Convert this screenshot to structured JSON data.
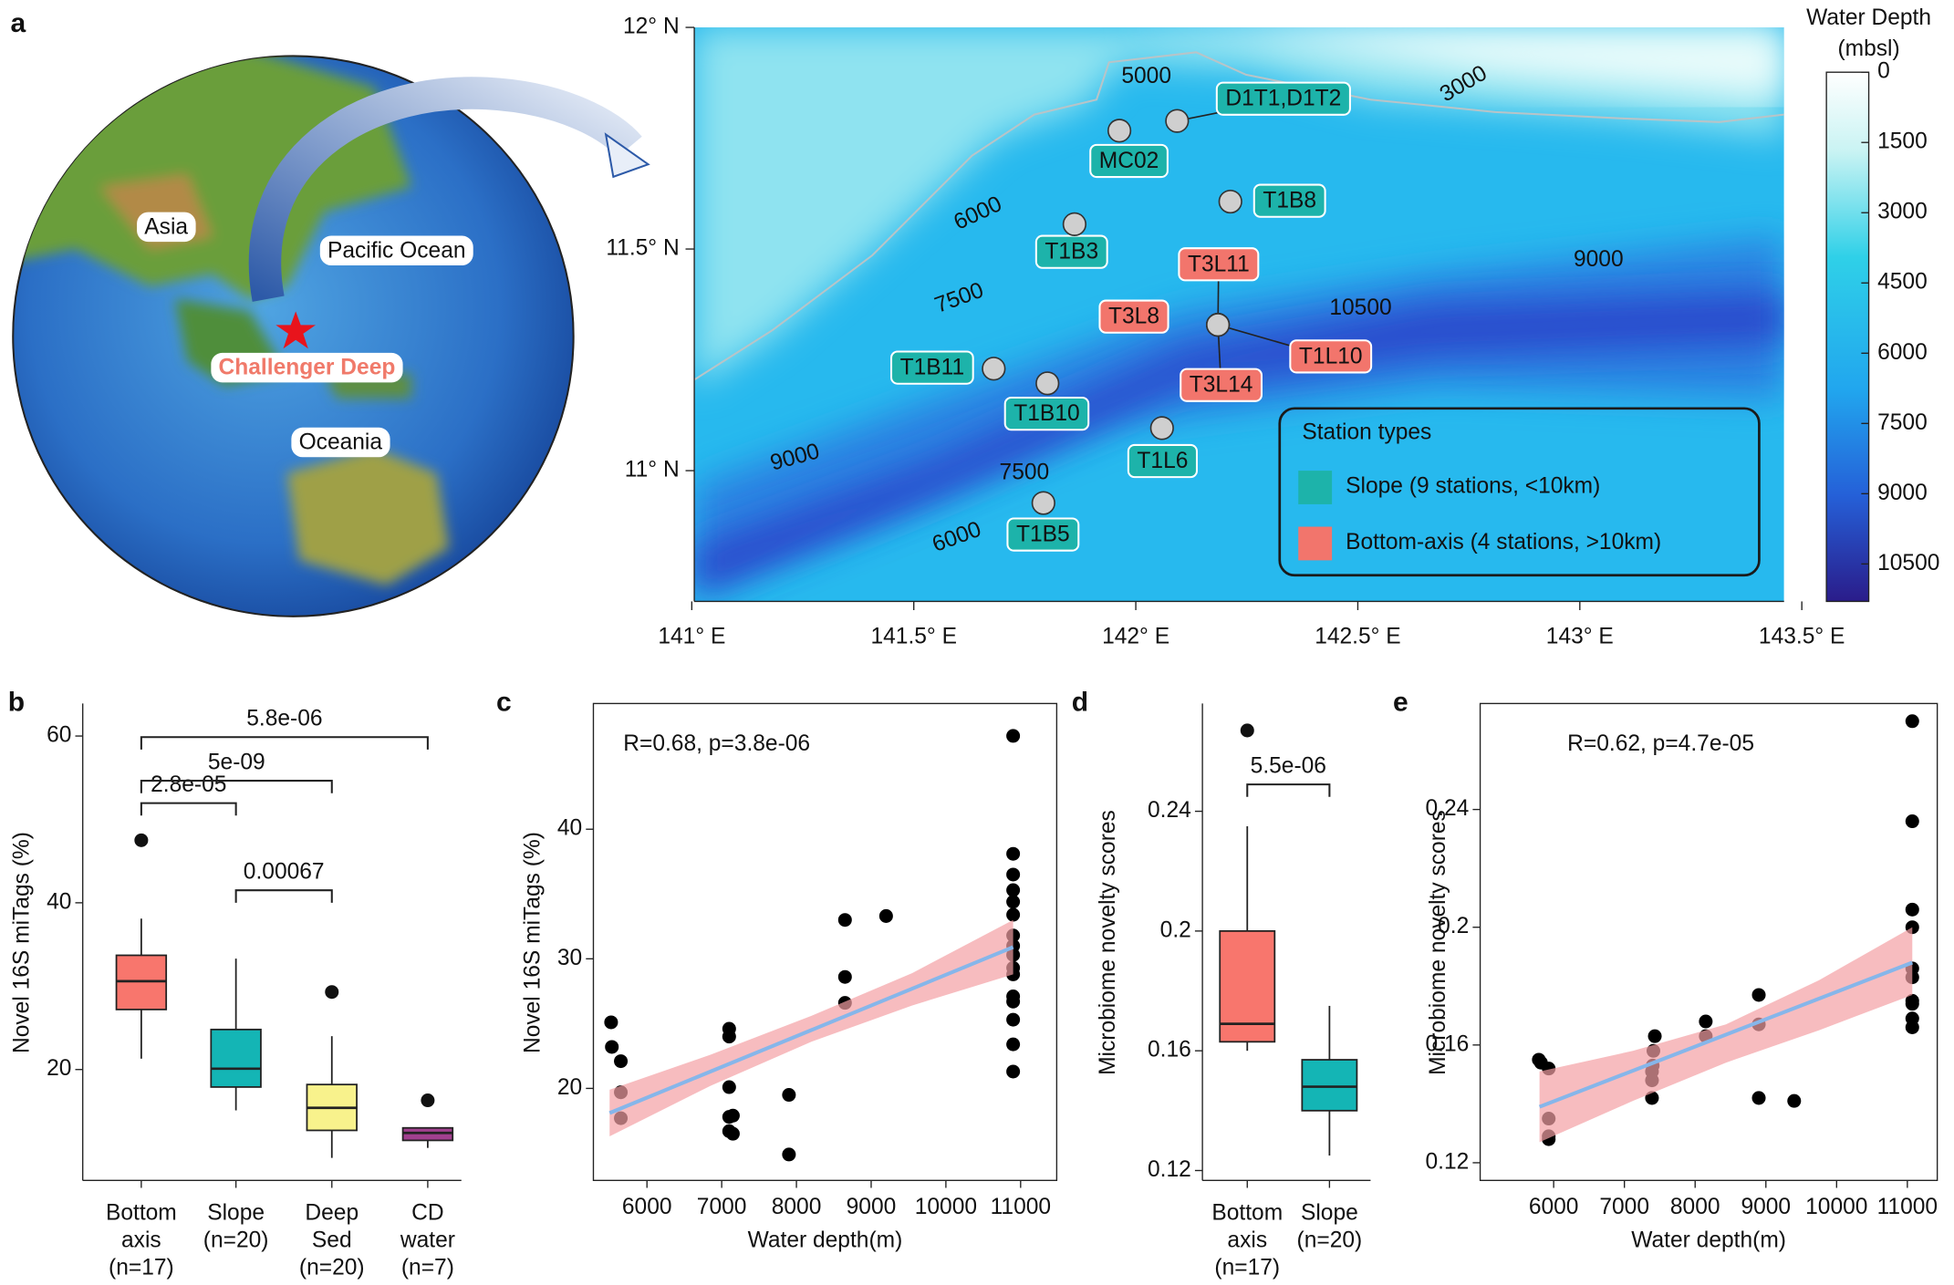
{
  "panel_labels": [
    "a",
    "b",
    "c",
    "d",
    "e"
  ],
  "map": {
    "globe_labels": [
      "Asia",
      "Pacific Ocean",
      "Challenger Deep",
      "Oceania"
    ],
    "xlim": [
      141,
      143.46
    ],
    "ylim": [
      10.705,
      12
    ],
    "xticks": [
      {
        "value": 141,
        "label": "141° E"
      },
      {
        "value": 141.5,
        "label": "141.5° E"
      },
      {
        "value": 142,
        "label": "142° E"
      },
      {
        "value": 142.5,
        "label": "142.5° E"
      },
      {
        "value": 143,
        "label": "143° E"
      },
      {
        "value": 143.5,
        "label": "143.5° E"
      }
    ],
    "yticks": [
      {
        "value": 11,
        "label": "11° N"
      },
      {
        "value": 11.5,
        "label": "11.5° N"
      },
      {
        "value": 12,
        "label": "12° N"
      }
    ],
    "contour_labels": [
      5000,
      3000,
      6000,
      7500,
      9000,
      10500,
      9000,
      7500,
      6000
    ],
    "stations": [
      {
        "name": "D1T1,D1T2",
        "lon": 142.093,
        "lat": 11.789,
        "color": "#1db3aa"
      },
      {
        "name": "MC02",
        "lon": 141.963,
        "lat": 11.767,
        "color": "#1db3aa"
      },
      {
        "name": "T1B8",
        "lon": 142.213,
        "lat": 11.607,
        "color": "#1db3aa"
      },
      {
        "name": "T1B3",
        "lon": 141.862,
        "lat": 11.556,
        "color": "#1db3aa"
      },
      {
        "name": "T3L11",
        "lon": 142.185,
        "lat": 11.329,
        "color": "#f2756c"
      },
      {
        "name": "T3L8",
        "lon": 142.185,
        "lat": 11.329,
        "color": "#f2756c"
      },
      {
        "name": "T1L10",
        "lon": 142.185,
        "lat": 11.329,
        "color": "#f2756c"
      },
      {
        "name": "T3L14",
        "lon": 142.185,
        "lat": 11.329,
        "color": "#f2756c"
      },
      {
        "name": "T1B11",
        "lon": 141.68,
        "lat": 11.23,
        "color": "#1db3aa"
      },
      {
        "name": "T1B10",
        "lon": 141.801,
        "lat": 11.197,
        "color": "#1db3aa"
      },
      {
        "name": "T1L6",
        "lon": 142.059,
        "lat": 11.096,
        "color": "#1db3aa"
      },
      {
        "name": "T1B5",
        "lon": 141.792,
        "lat": 10.927,
        "color": "#1db3aa"
      }
    ],
    "legend": {
      "title": "Station types",
      "entries": [
        {
          "label": "Slope (9 stations, <10km)",
          "color": "#1db3aa"
        },
        {
          "label": "Bottom-axis (4 stations, >10km)",
          "color": "#f2756c"
        }
      ]
    },
    "colorbar": {
      "title": [
        "Water Depth",
        "(mbsl)"
      ],
      "ylim": [
        0,
        11300
      ],
      "ticks": [
        0,
        1500,
        3000,
        4500,
        6000,
        7500,
        9000,
        10500
      ]
    }
  },
  "chart_data": [
    {
      "type": "box",
      "ylabel": "Novel 16S miTags (%)",
      "categories": [
        [
          "Bottom",
          "axis",
          "(n=17)"
        ],
        [
          "Slope",
          "(n=20)"
        ],
        [
          "Deep",
          "Sed",
          "(n=20)"
        ],
        [
          "CD",
          "water",
          "(n=7)"
        ]
      ],
      "colors": [
        "#f8766d",
        "#14b5b5",
        "#f8f28c",
        "#a1408f"
      ],
      "whisker_low": [
        21.3,
        15.1,
        9.4,
        10.6
      ],
      "q1": [
        27.2,
        17.9,
        12.7,
        11.5
      ],
      "median": [
        30.6,
        20.1,
        15.4,
        12.4
      ],
      "q3": [
        33.7,
        24.8,
        18.2,
        13.0
      ],
      "whisker_high": [
        38.1,
        33.3,
        24.0,
        13.0
      ],
      "outliers": [
        [
          47.5
        ],
        [],
        [
          29.3
        ],
        [
          16.3
        ]
      ],
      "ylim": [
        6.7,
        63.9
      ],
      "yticks": [
        20,
        40,
        60
      ],
      "comparisons": [
        "2.8e-05",
        "0.00067",
        "5e-09",
        "5.8e-06"
      ]
    },
    {
      "type": "scatter",
      "annotation": "R=0.68, p=3.8e-06",
      "xlabel": "Water depth(m)",
      "ylabel": "Novel 16S miTags (%)",
      "x": [
        5520,
        5530,
        5650,
        5650,
        5650,
        7100,
        7100,
        7100,
        7100,
        7150,
        7100,
        7150,
        7900,
        7900,
        8650,
        8650,
        8650,
        9200,
        10900,
        10900,
        10900,
        10900,
        10900,
        10900,
        10900,
        10900,
        10900,
        10900,
        10900,
        10900,
        10900,
        10900,
        10900,
        10900
      ],
      "values": [
        25.1,
        23.2,
        22.1,
        19.7,
        17.7,
        24.6,
        24.0,
        20.1,
        17.8,
        17.9,
        16.7,
        16.5,
        19.5,
        14.9,
        33.0,
        28.6,
        26.6,
        33.3,
        47.2,
        38.1,
        36.5,
        35.3,
        34.4,
        33.4,
        31.8,
        31.0,
        30.3,
        29.3,
        28.8,
        27.1,
        26.7,
        25.3,
        23.4,
        21.3
      ],
      "color": "#000000",
      "fit": {
        "x": [
          5500,
          10900
        ],
        "y": [
          18.1,
          30.9
        ],
        "color": "#86b6ea"
      },
      "band": {
        "x": [
          5500,
          6850,
          8200,
          9550,
          10900
        ],
        "lower": [
          16.3,
          20.2,
          23.6,
          26.4,
          28.8
        ],
        "upper": [
          19.9,
          22.6,
          25.6,
          28.9,
          33.0
        ],
        "color": "#f4a0a4"
      },
      "xlim": [
        5283,
        11483
      ],
      "ylim": [
        12.9,
        49.7
      ],
      "xticks": [
        6000,
        7000,
        8000,
        9000,
        10000,
        11000
      ],
      "yticks": [
        20,
        30,
        40
      ]
    },
    {
      "type": "box",
      "ylabel": "Microbiome novelty scores",
      "categories": [
        [
          "Bottom",
          "axis",
          "(n=17)"
        ],
        [
          "Slope",
          "(n=20)"
        ]
      ],
      "colors": [
        "#f8766d",
        "#14b5b5"
      ],
      "whisker_low": [
        0.16,
        0.125
      ],
      "q1": [
        0.163,
        0.14
      ],
      "median": [
        0.169,
        0.148
      ],
      "q3": [
        0.2,
        0.157
      ],
      "whisker_high": [
        0.235,
        0.175
      ],
      "outliers": [
        [
          0.267
        ],
        []
      ],
      "ylim": [
        0.1167,
        0.276
      ],
      "yticks": [
        0.12,
        0.16,
        0.2,
        0.24
      ],
      "comparisons": [
        "5.5e-06"
      ]
    },
    {
      "type": "scatter",
      "annotation": "R=0.62, p=4.7e-05",
      "xlabel": "Water depth(m)",
      "ylabel": "Microbiome novelty scores",
      "x": [
        5790,
        5820,
        5930,
        5930,
        5930,
        5930,
        7430,
        7410,
        7400,
        7390,
        7390,
        7390,
        8150,
        8150,
        8900,
        8900,
        8900,
        9400,
        11070,
        11070,
        11070,
        11070,
        11070,
        11070,
        11070,
        11070,
        11070,
        11070
      ],
      "values": [
        0.155,
        0.154,
        0.152,
        0.135,
        0.129,
        0.128,
        0.163,
        0.158,
        0.153,
        0.151,
        0.148,
        0.142,
        0.168,
        0.163,
        0.177,
        0.167,
        0.142,
        0.141,
        0.27,
        0.236,
        0.206,
        0.2,
        0.186,
        0.183,
        0.175,
        0.174,
        0.169,
        0.166
      ],
      "color": "#000000",
      "fit": {
        "x": [
          5800,
          11070
        ],
        "y": [
          0.139,
          0.188
        ],
        "color": "#86b6ea"
      },
      "band": {
        "x": [
          5800,
          7120,
          8435,
          9750,
          11070
        ],
        "lower": [
          0.127,
          0.141,
          0.154,
          0.165,
          0.177
        ],
        "upper": [
          0.151,
          0.158,
          0.167,
          0.182,
          0.2
        ],
        "color": "#f4a0a4"
      },
      "xlim": [
        4961,
        11423
      ],
      "ylim": [
        0.114,
        0.276
      ],
      "xticks": [
        6000,
        7000,
        8000,
        9000,
        10000,
        11000
      ],
      "yticks": [
        0.12,
        0.16,
        0.2,
        0.24
      ]
    }
  ]
}
